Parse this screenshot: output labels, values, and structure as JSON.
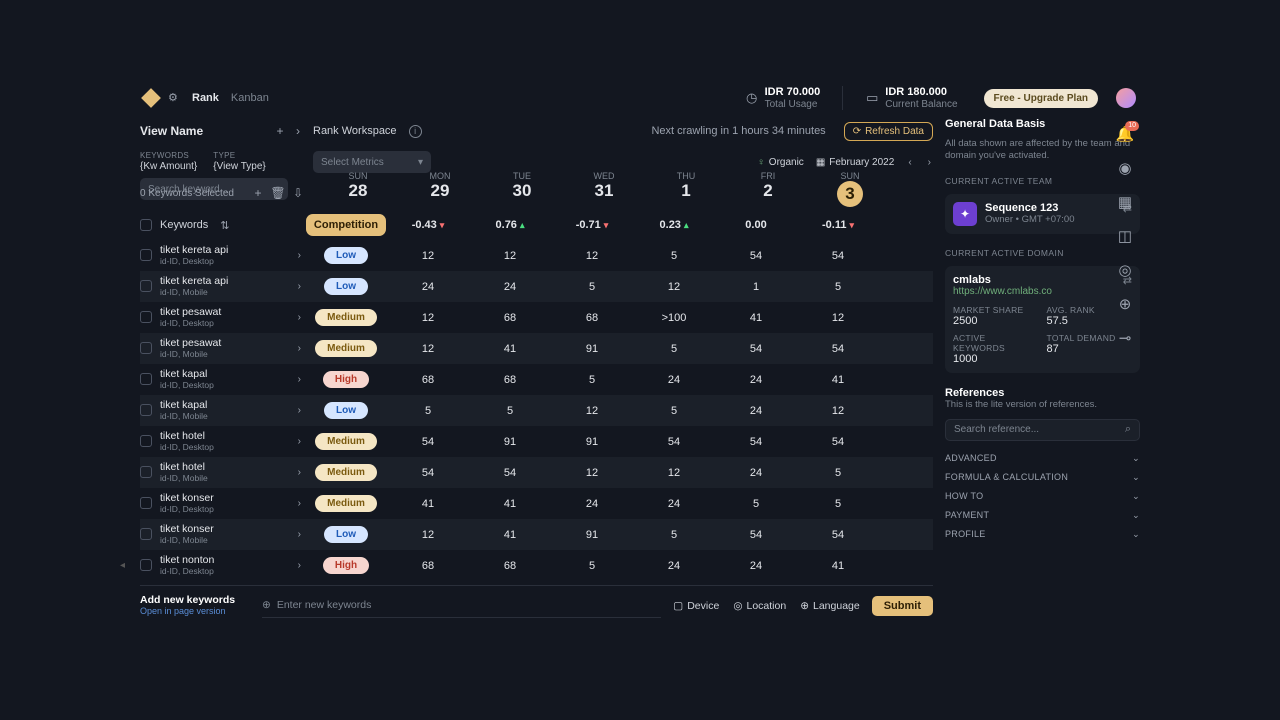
{
  "topbar": {
    "brand": "Rank",
    "kanban": "Kanban",
    "usage_value": "IDR 70.000",
    "usage_label": "Total Usage",
    "balance_value": "IDR 180.000",
    "balance_label": "Current Balance",
    "upgrade": "Free - Upgrade Plan"
  },
  "subbar": {
    "view_name": "View Name",
    "keywords_label": "KEYWORDS",
    "keywords_value": "{Kw Amount}",
    "type_label": "TYPE",
    "type_value": "{View Type}",
    "workspace": "Rank Workspace",
    "crawl": "Next crawling in 1 hours 34 minutes",
    "refresh": "Refresh Data",
    "metrics_placeholder": "Select Metrics",
    "organic": "Organic",
    "period": "February 2022",
    "search_placeholder": "Search keyword...",
    "selected": "0 Keywords Selected",
    "keywords_header": "Keywords",
    "competition_header": "Competition"
  },
  "days": [
    {
      "dow": "SUN",
      "dom": "28",
      "change": "-0.43",
      "dir": "dn"
    },
    {
      "dow": "MON",
      "dom": "29",
      "change": "0.76",
      "dir": "up"
    },
    {
      "dow": "TUE",
      "dom": "30",
      "change": "-0.71",
      "dir": "dn"
    },
    {
      "dow": "WED",
      "dom": "31",
      "change": "0.23",
      "dir": "up"
    },
    {
      "dow": "THU",
      "dom": "1",
      "change": "0.00",
      "dir": ""
    },
    {
      "dow": "FRI",
      "dom": "2",
      "change": "-0.11",
      "dir": "dn"
    },
    {
      "dow": "SUN",
      "dom": "3",
      "change": "",
      "dir": "",
      "today": true
    }
  ],
  "rows": [
    {
      "name": "tiket kereta api",
      "meta": "id-ID, Desktop",
      "comp": "Low",
      "v": [
        "12",
        "12",
        "12",
        "5",
        "54",
        "54"
      ]
    },
    {
      "name": "tiket kereta api",
      "meta": "id-ID, Mobile",
      "comp": "Low",
      "v": [
        "24",
        "24",
        "5",
        "12",
        "1",
        "5"
      ]
    },
    {
      "name": "tiket pesawat",
      "meta": "id-ID, Desktop",
      "comp": "Medium",
      "v": [
        "12",
        "68",
        "68",
        ">100",
        "41",
        "12"
      ]
    },
    {
      "name": "tiket pesawat",
      "meta": "id-ID, Mobile",
      "comp": "Medium",
      "v": [
        "12",
        "41",
        "91",
        "5",
        "54",
        "54"
      ]
    },
    {
      "name": "tiket kapal",
      "meta": "id-ID, Desktop",
      "comp": "High",
      "v": [
        "68",
        "68",
        "5",
        "24",
        "24",
        "41"
      ]
    },
    {
      "name": "tiket kapal",
      "meta": "id-ID, Mobile",
      "comp": "Low",
      "v": [
        "5",
        "5",
        "12",
        "5",
        "24",
        "12"
      ]
    },
    {
      "name": "tiket hotel",
      "meta": "id-ID, Desktop",
      "comp": "Medium",
      "v": [
        "54",
        "91",
        "91",
        "54",
        "54",
        "54"
      ]
    },
    {
      "name": "tiket hotel",
      "meta": "id-ID, Mobile",
      "comp": "Medium",
      "v": [
        "54",
        "54",
        "12",
        "12",
        "24",
        "5"
      ]
    },
    {
      "name": "tiket konser",
      "meta": "id-ID, Desktop",
      "comp": "Medium",
      "v": [
        "41",
        "41",
        "24",
        "24",
        "5",
        "5"
      ]
    },
    {
      "name": "tiket konser",
      "meta": "id-ID, Mobile",
      "comp": "Low",
      "v": [
        "12",
        "41",
        "91",
        "5",
        "54",
        "54"
      ]
    },
    {
      "name": "tiket nonton",
      "meta": "id-ID, Desktop",
      "comp": "High",
      "v": [
        "68",
        "68",
        "5",
        "24",
        "24",
        "41"
      ],
      "tagged": true
    }
  ],
  "footer": {
    "add_title": "Add new keywords",
    "add_sub": "Open in page version",
    "enter_placeholder": "Enter new keywords",
    "device": "Device",
    "location": "Location",
    "language": "Language",
    "submit": "Submit"
  },
  "side": {
    "title": "General Data Basis",
    "help": "All data shown are affected by the team and domain you've activated.",
    "team_label": "CURRENT ACTIVE TEAM",
    "team_name": "Sequence 123",
    "team_meta": "Owner • GMT +07:00",
    "domain_label": "CURRENT ACTIVE DOMAIN",
    "domain_name": "cmlabs",
    "domain_url": "https://www.cmlabs.co",
    "stat_ms_l": "MARKET SHARE",
    "stat_ms_v": "2500",
    "stat_ar_l": "AVG. RANK",
    "stat_ar_v": "57.5",
    "stat_ak_l": "ACTIVE KEYWORDS",
    "stat_ak_v": "1000",
    "stat_td_l": "TOTAL DEMAND",
    "stat_td_v": "87",
    "ref_title": "References",
    "ref_help": "This is the lite version of references.",
    "ref_placeholder": "Search reference...",
    "acc": [
      "ADVANCED",
      "FORMULA & CALCULATION",
      "HOW TO",
      "PAYMENT",
      "PROFILE"
    ]
  },
  "rail": {
    "badge": "10"
  }
}
